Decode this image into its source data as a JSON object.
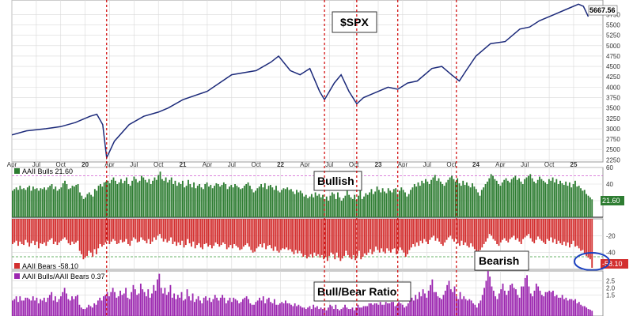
{
  "chart_data": [
    {
      "type": "line",
      "title": "$SPX",
      "last_value": "5667.56",
      "ylim": [
        2200,
        6100
      ],
      "y_ticks": [
        "5750",
        "5500",
        "5250",
        "5000",
        "4750",
        "4500",
        "4250",
        "4000",
        "3750",
        "3500",
        "3250",
        "3000",
        "2750",
        "2500",
        "2250"
      ],
      "x_tick_labels": [
        "Apr",
        "Jul",
        "Oct",
        "20",
        "Apr",
        "Jul",
        "Oct",
        "21",
        "Apr",
        "Jul",
        "Oct",
        "22",
        "Apr",
        "Jul",
        "Oct",
        "23",
        "Apr",
        "Jul",
        "Oct",
        "24",
        "Apr",
        "Jul",
        "Oct",
        "25"
      ],
      "x_tick_times": [
        2019.25,
        2019.5,
        2019.75,
        2020.0,
        2020.25,
        2020.5,
        2020.75,
        2021.0,
        2021.25,
        2021.5,
        2021.75,
        2022.0,
        2022.25,
        2022.5,
        2022.75,
        2023.0,
        2023.25,
        2023.5,
        2023.75,
        2024.0,
        2024.25,
        2024.5,
        2024.75,
        2025.0
      ],
      "x_range": [
        2019.25,
        2025.3
      ],
      "x": [
        2019.25,
        2019.4,
        2019.6,
        2019.75,
        2019.9,
        2020.05,
        2020.12,
        2020.18,
        2020.22,
        2020.3,
        2020.45,
        2020.6,
        2020.75,
        2020.85,
        2021.0,
        2021.25,
        2021.5,
        2021.75,
        2021.9,
        2021.98,
        2022.1,
        2022.2,
        2022.3,
        2022.4,
        2022.45,
        2022.55,
        2022.62,
        2022.7,
        2022.78,
        2022.85,
        2022.95,
        2023.1,
        2023.2,
        2023.3,
        2023.4,
        2023.55,
        2023.65,
        2023.75,
        2023.83,
        2023.9,
        2024.0,
        2024.15,
        2024.3,
        2024.45,
        2024.55,
        2024.65,
        2024.8,
        2024.95,
        2025.05,
        2025.1,
        2025.15
      ],
      "y": [
        2850,
        2950,
        3000,
        3050,
        3150,
        3300,
        3350,
        3100,
        2300,
        2700,
        3100,
        3300,
        3400,
        3500,
        3700,
        3900,
        4300,
        4400,
        4600,
        4750,
        4400,
        4300,
        4450,
        3900,
        3700,
        4100,
        4300,
        3900,
        3600,
        3750,
        3850,
        4000,
        3950,
        4100,
        4150,
        4450,
        4500,
        4300,
        4150,
        4400,
        4750,
        5050,
        5100,
        5400,
        5450,
        5600,
        5750,
        5900,
        6000,
        5950,
        5700
      ],
      "event_lines_t": [
        2020.22,
        2022.45,
        2022.78,
        2023.2,
        2023.8
      ]
    },
    {
      "type": "bar",
      "title": "AAII Bulls 21.60",
      "series_name": "AAII Bulls",
      "last_value": "21.60",
      "ylim": [
        0,
        60
      ],
      "y_ticks": [
        "60",
        "40",
        "20"
      ],
      "x_start": 2019.25,
      "x_end": 2025.2,
      "values": [
        32,
        34,
        36,
        33,
        38,
        34,
        35,
        33,
        36,
        38,
        32,
        37,
        34,
        35,
        32,
        35,
        34,
        36,
        33,
        36,
        38,
        40,
        34,
        37,
        32,
        34,
        36,
        41,
        44,
        40,
        34,
        35,
        38,
        37,
        39,
        40,
        30,
        26,
        22,
        24,
        28,
        30,
        27,
        25,
        34,
        32,
        38,
        40,
        37,
        42,
        43,
        44,
        41,
        45,
        48,
        44,
        40,
        42,
        46,
        41,
        44,
        48,
        40,
        38,
        44,
        49,
        46,
        42,
        44,
        50,
        48,
        45,
        42,
        46,
        40,
        44,
        48,
        45,
        51,
        55,
        46,
        44,
        48,
        42,
        45,
        48,
        40,
        44,
        38,
        42,
        40,
        44,
        36,
        38,
        45,
        40,
        36,
        42,
        35,
        38,
        40,
        36,
        34,
        40,
        42,
        37,
        39,
        35,
        38,
        41,
        40,
        37,
        39,
        42,
        40,
        34,
        37,
        39,
        36,
        40,
        38,
        36,
        34,
        35,
        38,
        40,
        42,
        38,
        34,
        30,
        32,
        35,
        37,
        40,
        36,
        41,
        34,
        38,
        39,
        36,
        33,
        38,
        32,
        30,
        33,
        35,
        34,
        36,
        33,
        34,
        31,
        28,
        33,
        30,
        32,
        29,
        25,
        27,
        23,
        25,
        28,
        24,
        30,
        26,
        28,
        24,
        27,
        22,
        25,
        20,
        26,
        30,
        28,
        22,
        30,
        24,
        20,
        23,
        26,
        32,
        27,
        24,
        22,
        27,
        21,
        26,
        32,
        22,
        25,
        29,
        27,
        30,
        34,
        28,
        31,
        37,
        33,
        30,
        35,
        31,
        29,
        35,
        32,
        30,
        34,
        35,
        28,
        32,
        36,
        33,
        30,
        25,
        28,
        33,
        36,
        40,
        37,
        42,
        38,
        44,
        41,
        46,
        43,
        40,
        45,
        48,
        51,
        44,
        47,
        43,
        40,
        38,
        42,
        45,
        48,
        50,
        46,
        43,
        47,
        41,
        38,
        44,
        39,
        42,
        38,
        36,
        41,
        37,
        34,
        30,
        26,
        33,
        36,
        40,
        43,
        47,
        52,
        50,
        46,
        44,
        40,
        38,
        42,
        45,
        47,
        44,
        42,
        46,
        48,
        50,
        45,
        47,
        43,
        40,
        46,
        48,
        50,
        52,
        47,
        43,
        41,
        45,
        49,
        46,
        44,
        42,
        40,
        46,
        44,
        48,
        42,
        46,
        40,
        44,
        41,
        39,
        43,
        38,
        42,
        36,
        40,
        44,
        37,
        38,
        35,
        32,
        33,
        28,
        26,
        24,
        21.6
      ],
      "extra_lines": [
        50,
        0
      ],
      "event_lines_t": [
        2020.22,
        2022.45,
        2022.78,
        2023.2,
        2023.8
      ]
    },
    {
      "type": "bar",
      "title": "AAII Bears -58.10",
      "series_name": "AAII Bears",
      "last_value": "-58.10",
      "ylim": [
        -60,
        0
      ],
      "y_ticks": [
        "-20",
        "-40"
      ],
      "x_start": 2019.25,
      "x_end": 2025.2,
      "values": [
        -30,
        -28,
        -26,
        -32,
        -27,
        -30,
        -31,
        -25,
        -28,
        -33,
        -29,
        -26,
        -31,
        -27,
        -35,
        -29,
        -30,
        -28,
        -32,
        -27,
        -25,
        -23,
        -30,
        -27,
        -31,
        -28,
        -26,
        -24,
        -22,
        -25,
        -29,
        -31,
        -27,
        -30,
        -28,
        -26,
        -38,
        -42,
        -48,
        -46,
        -44,
        -38,
        -40,
        -45,
        -36,
        -42,
        -35,
        -30,
        -33,
        -31,
        -28,
        -26,
        -30,
        -27,
        -24,
        -26,
        -30,
        -29,
        -25,
        -28,
        -27,
        -24,
        -30,
        -32,
        -26,
        -22,
        -24,
        -28,
        -27,
        -22,
        -25,
        -26,
        -29,
        -24,
        -30,
        -27,
        -22,
        -25,
        -20,
        -18,
        -23,
        -27,
        -24,
        -28,
        -26,
        -22,
        -30,
        -27,
        -32,
        -28,
        -31,
        -26,
        -34,
        -31,
        -24,
        -29,
        -33,
        -27,
        -35,
        -31,
        -29,
        -34,
        -36,
        -30,
        -29,
        -33,
        -31,
        -35,
        -32,
        -28,
        -30,
        -33,
        -31,
        -28,
        -30,
        -36,
        -34,
        -31,
        -35,
        -30,
        -32,
        -34,
        -37,
        -36,
        -33,
        -31,
        -29,
        -33,
        -37,
        -40,
        -39,
        -35,
        -33,
        -30,
        -34,
        -29,
        -36,
        -32,
        -31,
        -35,
        -38,
        -33,
        -38,
        -40,
        -37,
        -35,
        -36,
        -34,
        -37,
        -36,
        -39,
        -42,
        -37,
        -41,
        -38,
        -41,
        -45,
        -43,
        -47,
        -45,
        -42,
        -46,
        -40,
        -44,
        -42,
        -46,
        -43,
        -48,
        -45,
        -50,
        -44,
        -40,
        -42,
        -48,
        -40,
        -46,
        -50,
        -47,
        -44,
        -38,
        -43,
        -46,
        -48,
        -43,
        -49,
        -44,
        -38,
        -48,
        -45,
        -41,
        -43,
        -40,
        -36,
        -42,
        -39,
        -33,
        -37,
        -40,
        -35,
        -39,
        -41,
        -35,
        -38,
        -40,
        -36,
        -35,
        -42,
        -38,
        -34,
        -37,
        -40,
        -45,
        -42,
        -37,
        -34,
        -30,
        -33,
        -28,
        -32,
        -26,
        -29,
        -24,
        -27,
        -30,
        -25,
        -22,
        -20,
        -26,
        -23,
        -27,
        -30,
        -32,
        -28,
        -25,
        -22,
        -20,
        -24,
        -27,
        -23,
        -29,
        -32,
        -26,
        -31,
        -28,
        -32,
        -34,
        -29,
        -33,
        -36,
        -40,
        -44,
        -37,
        -34,
        -30,
        -27,
        -23,
        -18,
        -20,
        -24,
        -26,
        -30,
        -32,
        -28,
        -25,
        -23,
        -26,
        -28,
        -24,
        -22,
        -20,
        -25,
        -23,
        -27,
        -30,
        -24,
        -22,
        -20,
        -18,
        -23,
        -27,
        -29,
        -25,
        -21,
        -24,
        -26,
        -28,
        -30,
        -24,
        -26,
        -22,
        -28,
        -24,
        -30,
        -26,
        -29,
        -31,
        -27,
        -32,
        -28,
        -34,
        -30,
        -26,
        -33,
        -32,
        -35,
        -38,
        -37,
        -42,
        -44,
        -46,
        -48,
        -58.1
      ],
      "extra_lines": [
        -45
      ],
      "event_lines_t": [
        2020.22,
        2022.45,
        2022.78,
        2023.2,
        2023.8
      ]
    },
    {
      "type": "bar",
      "title": "AAII Bulls/AAII Bears 0.37",
      "series_name": "AAII Bulls/AAII Bears",
      "last_value": "0.37",
      "ylim": [
        0,
        3.2
      ],
      "y_ticks": [
        "2.5",
        "2.0",
        "1.5"
      ],
      "x_start": 2019.25,
      "x_end": 2025.2,
      "values": [
        1.1,
        1.2,
        1.4,
        1.0,
        1.4,
        1.1,
        1.1,
        1.3,
        1.3,
        1.2,
        1.1,
        1.4,
        1.1,
        1.3,
        0.9,
        1.2,
        1.1,
        1.3,
        1.0,
        1.3,
        1.5,
        1.7,
        1.1,
        1.4,
        1.0,
        1.2,
        1.4,
        1.7,
        2.0,
        1.6,
        1.2,
        1.1,
        1.4,
        1.2,
        1.4,
        1.5,
        0.8,
        0.6,
        0.5,
        0.5,
        0.6,
        0.8,
        0.7,
        0.6,
        0.9,
        0.8,
        1.1,
        1.3,
        1.1,
        1.4,
        1.5,
        1.7,
        1.4,
        1.7,
        2.0,
        1.7,
        1.3,
        1.4,
        1.8,
        1.5,
        1.6,
        2.0,
        1.3,
        1.2,
        1.7,
        2.2,
        1.9,
        1.5,
        1.6,
        2.3,
        1.9,
        1.7,
        1.4,
        1.9,
        1.3,
        1.6,
        2.2,
        1.8,
        2.6,
        3.0,
        2.0,
        1.6,
        2.0,
        1.5,
        1.7,
        2.2,
        1.3,
        1.6,
        1.2,
        1.5,
        1.3,
        1.7,
        1.1,
        1.2,
        1.9,
        1.4,
        1.1,
        1.6,
        1.0,
        1.2,
        1.4,
        1.1,
        0.9,
        1.3,
        1.4,
        1.1,
        1.3,
        1.0,
        1.2,
        1.5,
        1.3,
        1.1,
        1.3,
        1.5,
        1.3,
        0.9,
        1.1,
        1.3,
        1.0,
        1.3,
        1.2,
        1.1,
        0.9,
        1.0,
        1.2,
        1.3,
        1.4,
        1.2,
        0.9,
        0.8,
        0.8,
        1.0,
        1.1,
        1.3,
        1.1,
        1.4,
        0.9,
        1.2,
        1.3,
        1.0,
        0.9,
        1.2,
        0.8,
        0.8,
        0.9,
        1.0,
        0.9,
        1.1,
        0.9,
        0.9,
        0.8,
        0.7,
        0.9,
        0.7,
        0.8,
        0.7,
        0.6,
        0.6,
        0.5,
        0.6,
        0.7,
        0.5,
        0.8,
        0.6,
        0.7,
        0.5,
        0.6,
        0.5,
        0.6,
        0.4,
        0.6,
        0.8,
        0.7,
        0.5,
        0.8,
        0.5,
        0.4,
        0.5,
        0.6,
        0.8,
        0.6,
        0.5,
        0.5,
        0.6,
        0.4,
        0.6,
        0.8,
        0.6,
        0.6,
        0.7,
        0.7,
        0.7,
        0.9,
        0.9,
        0.8,
        0.9,
        0.9,
        0.8,
        1.0,
        0.8,
        0.8,
        1.0,
        0.9,
        0.9,
        1.0,
        1.0,
        0.7,
        0.8,
        1.0,
        0.9,
        0.8,
        0.6,
        0.7,
        0.9,
        1.1,
        1.3,
        1.1,
        1.5,
        1.2,
        1.7,
        1.4,
        1.9,
        1.6,
        1.3,
        1.8,
        2.2,
        2.6,
        1.7,
        1.7,
        1.4,
        1.3,
        1.2,
        1.5,
        1.8,
        2.2,
        2.5,
        1.9,
        1.7,
        2.1,
        1.4,
        1.2,
        1.7,
        1.2,
        1.4,
        1.2,
        1.1,
        1.2,
        1.1,
        0.9,
        0.8,
        0.6,
        0.9,
        1.1,
        1.5,
        2.0,
        2.5,
        3.2,
        2.8,
        2.1,
        1.8,
        1.4,
        1.2,
        1.6,
        1.9,
        2.3,
        1.8,
        1.5,
        1.8,
        2.2,
        2.3,
        2.0,
        1.9,
        1.5,
        1.3,
        2.1,
        2.1,
        2.7,
        2.9,
        2.1,
        1.6,
        1.4,
        1.8,
        2.3,
        2.1,
        1.8,
        1.5,
        1.4,
        1.7,
        1.7,
        1.8,
        1.7,
        1.8,
        1.4,
        1.5,
        1.3,
        1.3,
        1.5,
        1.2,
        1.3,
        1.1,
        1.2,
        1.2,
        1.1,
        1.2,
        0.9,
        1.0,
        0.8,
        0.7,
        0.7,
        0.6,
        0.5,
        0.45,
        0.37
      ],
      "event_lines_t": [
        2020.22,
        2022.45,
        2022.78,
        2023.2,
        2023.8
      ]
    }
  ],
  "annotations": {
    "spx": "$SPX",
    "bullish": "Bullish",
    "bearish": "Bearish",
    "ratio": "Bull/Bear Ratio"
  },
  "colors": {
    "line": "#1c2a7a",
    "bull": "#2e7d32",
    "bear": "#d32f2f",
    "ratio": "#9c27b0",
    "event": "#d00000",
    "grid": "#d9d9d9"
  }
}
